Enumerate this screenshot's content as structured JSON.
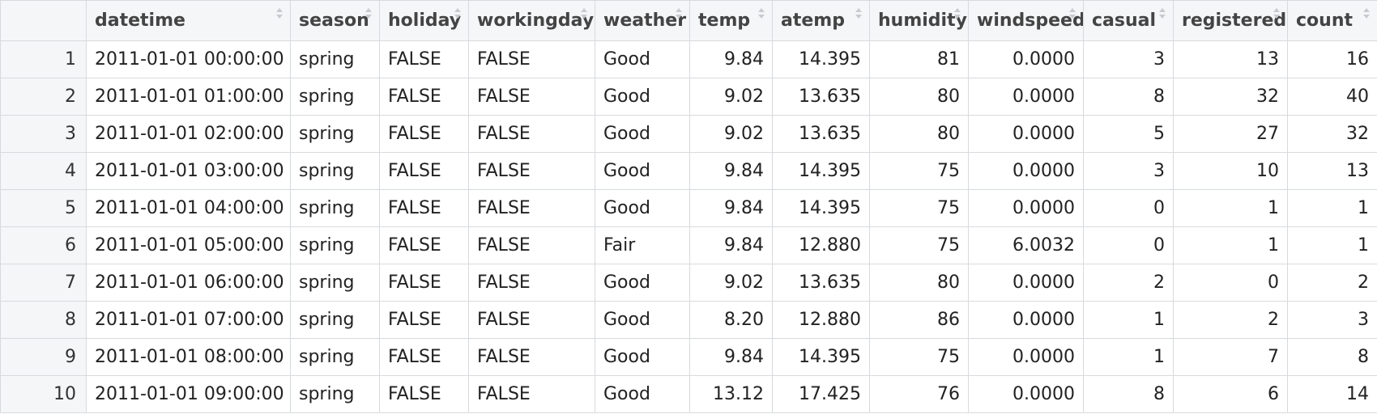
{
  "columns": [
    {
      "key": "datetime",
      "label": "datetime",
      "align": "left"
    },
    {
      "key": "season",
      "label": "season",
      "align": "left"
    },
    {
      "key": "holiday",
      "label": "holiday",
      "align": "left"
    },
    {
      "key": "workingday",
      "label": "workingday",
      "align": "left"
    },
    {
      "key": "weather",
      "label": "weather",
      "align": "left"
    },
    {
      "key": "temp",
      "label": "temp",
      "align": "right"
    },
    {
      "key": "atemp",
      "label": "atemp",
      "align": "right"
    },
    {
      "key": "humidity",
      "label": "humidity",
      "align": "right"
    },
    {
      "key": "windspeed",
      "label": "windspeed",
      "align": "right"
    },
    {
      "key": "casual",
      "label": "casual",
      "align": "right"
    },
    {
      "key": "registered",
      "label": "registered",
      "align": "right"
    },
    {
      "key": "count",
      "label": "count",
      "align": "right"
    }
  ],
  "rows": [
    {
      "n": "1",
      "cells": [
        "2011-01-01 00:00:00",
        "spring",
        "FALSE",
        "FALSE",
        "Good",
        "9.84",
        "14.395",
        "81",
        "0.0000",
        "3",
        "13",
        "16"
      ]
    },
    {
      "n": "2",
      "cells": [
        "2011-01-01 01:00:00",
        "spring",
        "FALSE",
        "FALSE",
        "Good",
        "9.02",
        "13.635",
        "80",
        "0.0000",
        "8",
        "32",
        "40"
      ]
    },
    {
      "n": "3",
      "cells": [
        "2011-01-01 02:00:00",
        "spring",
        "FALSE",
        "FALSE",
        "Good",
        "9.02",
        "13.635",
        "80",
        "0.0000",
        "5",
        "27",
        "32"
      ]
    },
    {
      "n": "4",
      "cells": [
        "2011-01-01 03:00:00",
        "spring",
        "FALSE",
        "FALSE",
        "Good",
        "9.84",
        "14.395",
        "75",
        "0.0000",
        "3",
        "10",
        "13"
      ]
    },
    {
      "n": "5",
      "cells": [
        "2011-01-01 04:00:00",
        "spring",
        "FALSE",
        "FALSE",
        "Good",
        "9.84",
        "14.395",
        "75",
        "0.0000",
        "0",
        "1",
        "1"
      ]
    },
    {
      "n": "6",
      "cells": [
        "2011-01-01 05:00:00",
        "spring",
        "FALSE",
        "FALSE",
        "Fair",
        "9.84",
        "12.880",
        "75",
        "6.0032",
        "0",
        "1",
        "1"
      ]
    },
    {
      "n": "7",
      "cells": [
        "2011-01-01 06:00:00",
        "spring",
        "FALSE",
        "FALSE",
        "Good",
        "9.02",
        "13.635",
        "80",
        "0.0000",
        "2",
        "0",
        "2"
      ]
    },
    {
      "n": "8",
      "cells": [
        "2011-01-01 07:00:00",
        "spring",
        "FALSE",
        "FALSE",
        "Good",
        "8.20",
        "12.880",
        "86",
        "0.0000",
        "1",
        "2",
        "3"
      ]
    },
    {
      "n": "9",
      "cells": [
        "2011-01-01 08:00:00",
        "spring",
        "FALSE",
        "FALSE",
        "Good",
        "9.84",
        "14.395",
        "75",
        "0.0000",
        "1",
        "7",
        "8"
      ]
    },
    {
      "n": "10",
      "cells": [
        "2011-01-01 09:00:00",
        "spring",
        "FALSE",
        "FALSE",
        "Good",
        "13.12",
        "17.425",
        "76",
        "0.0000",
        "8",
        "6",
        "14"
      ]
    }
  ],
  "icons": {
    "sort": "sort-icon"
  }
}
